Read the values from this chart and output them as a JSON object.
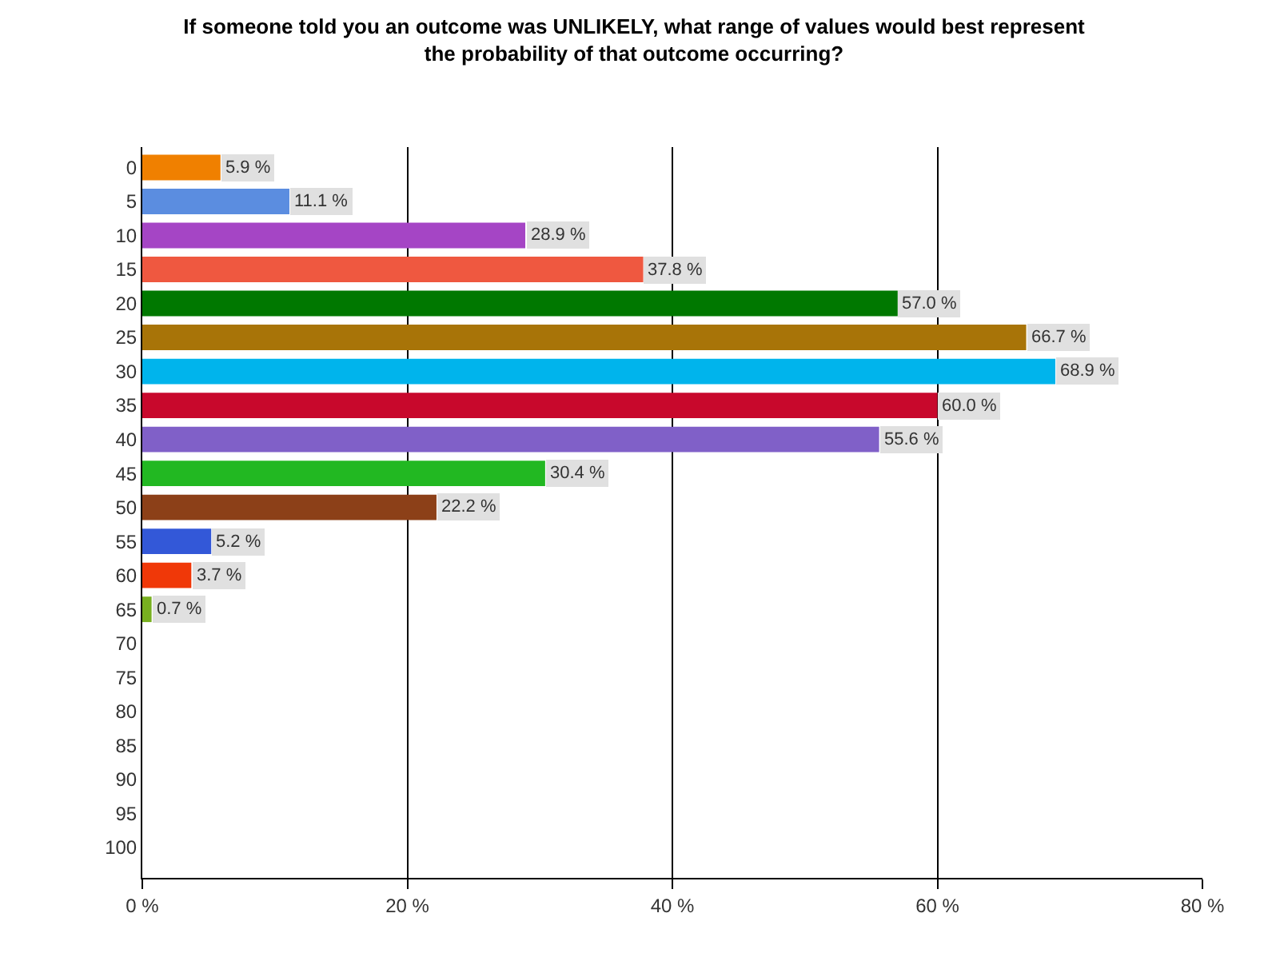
{
  "chart_data": {
    "type": "bar",
    "orientation": "horizontal",
    "title": "If someone told you an outcome was UNLIKELY, what range of values would best represent the probability of that outcome occurring?",
    "categories": [
      "0",
      "5",
      "10",
      "15",
      "20",
      "25",
      "30",
      "35",
      "40",
      "45",
      "50",
      "55",
      "60",
      "65",
      "70",
      "75",
      "80",
      "85",
      "90",
      "95",
      "100"
    ],
    "values": [
      5.9,
      11.1,
      28.9,
      37.8,
      57.0,
      66.7,
      68.9,
      60.0,
      55.6,
      30.4,
      22.2,
      5.2,
      3.7,
      0.7,
      null,
      null,
      null,
      null,
      null,
      null,
      null
    ],
    "value_labels": [
      "5.9 %",
      "11.1 %",
      "28.9 %",
      "37.8 %",
      "57.0 %",
      "66.7 %",
      "68.9 %",
      "60.0 %",
      "55.6 %",
      "30.4 %",
      "22.2 %",
      "5.2 %",
      "3.7 %",
      "0.7 %",
      null,
      null,
      null,
      null,
      null,
      null,
      null
    ],
    "colors": [
      "#f08000",
      "#5b8de0",
      "#a545c5",
      "#ef5840",
      "#007800",
      "#a87408",
      "#00b4ec",
      "#c8082c",
      "#8060c8",
      "#22b822",
      "#8c4018",
      "#3358d8",
      "#f03808",
      "#78b020",
      "#888888",
      "#888888",
      "#888888",
      "#888888",
      "#888888",
      "#888888",
      "#888888"
    ],
    "xlim": [
      0,
      80
    ],
    "xticks": [
      {
        "value": 0,
        "label": "0 %"
      },
      {
        "value": 20,
        "label": "20 %"
      },
      {
        "value": 40,
        "label": "40 %"
      },
      {
        "value": 60,
        "label": "60 %"
      },
      {
        "value": 80,
        "label": "80 %"
      }
    ],
    "grid": "x"
  }
}
